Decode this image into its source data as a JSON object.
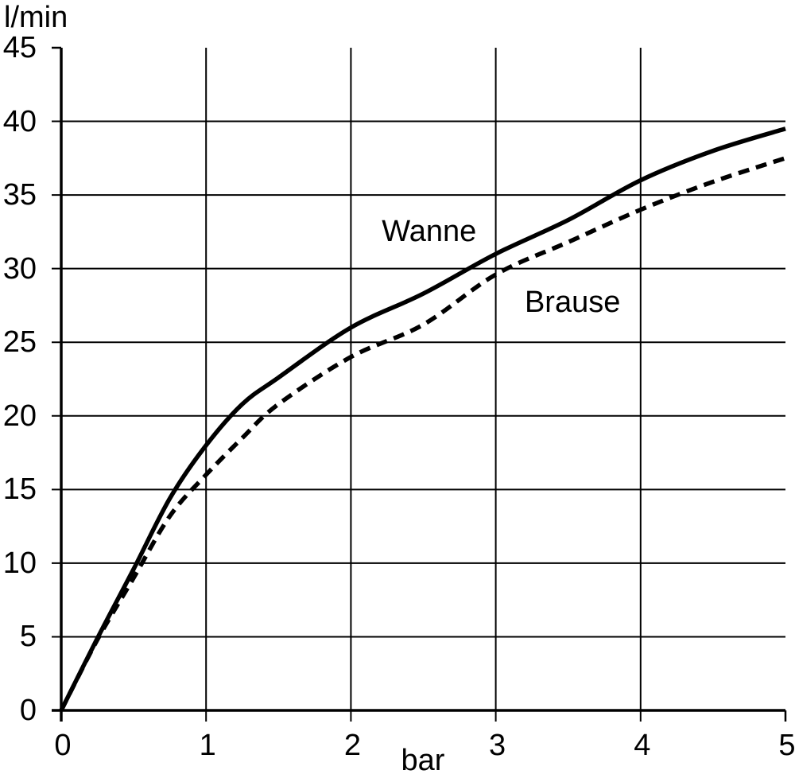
{
  "chart_data": {
    "type": "line",
    "title": "",
    "xlabel": "bar",
    "ylabel": "l/min",
    "xlim": [
      0,
      5
    ],
    "ylim": [
      0,
      45
    ],
    "grid": "on",
    "legend_position": "inline-annotations",
    "background_color": "#ffffff",
    "line_color": "#000000",
    "x_ticks": [
      {
        "value": 0,
        "label": "0",
        "grid": false
      },
      {
        "value": 1,
        "label": "1",
        "grid": true
      },
      {
        "value": 2,
        "label": "2",
        "grid": true
      },
      {
        "value": 3,
        "label": "3",
        "grid": true
      },
      {
        "value": 4,
        "label": "4",
        "grid": true
      },
      {
        "value": 5,
        "label": "5",
        "grid": false
      }
    ],
    "y_ticks": [
      {
        "value": 0,
        "label": "0",
        "grid": false
      },
      {
        "value": 5,
        "label": "5",
        "grid": true
      },
      {
        "value": 10,
        "label": "10",
        "grid": true
      },
      {
        "value": 15,
        "label": "15",
        "grid": true
      },
      {
        "value": 20,
        "label": "20",
        "grid": true
      },
      {
        "value": 25,
        "label": "25",
        "grid": true
      },
      {
        "value": 30,
        "label": "30",
        "grid": true
      },
      {
        "value": 35,
        "label": "35",
        "grid": true
      },
      {
        "value": 40,
        "label": "40",
        "grid": true
      },
      {
        "value": 45,
        "label": "45",
        "grid": false
      }
    ],
    "series": [
      {
        "name": "Wanne",
        "style": "solid",
        "label_at": [
          2.54,
          32.5
        ],
        "points": [
          [
            0,
            0
          ],
          [
            0.25,
            4.9
          ],
          [
            0.5,
            9.6
          ],
          [
            0.75,
            14.4
          ],
          [
            1,
            18
          ],
          [
            1.25,
            20.8
          ],
          [
            1.5,
            22.6
          ],
          [
            2,
            26
          ],
          [
            2.5,
            28.3
          ],
          [
            3,
            31
          ],
          [
            3.5,
            33.3
          ],
          [
            4,
            36
          ],
          [
            4.5,
            38
          ],
          [
            5,
            39.5
          ]
        ]
      },
      {
        "name": "Brause",
        "style": "dashed",
        "label_at": [
          3.53,
          27.7
        ],
        "points": [
          [
            0,
            0
          ],
          [
            0.25,
            4.8
          ],
          [
            0.5,
            9.0
          ],
          [
            0.75,
            13.2
          ],
          [
            1,
            16
          ],
          [
            1.25,
            18.5
          ],
          [
            1.5,
            20.8
          ],
          [
            2,
            24
          ],
          [
            2.5,
            26.2
          ],
          [
            3,
            29.6
          ],
          [
            3.5,
            31.8
          ],
          [
            4,
            34
          ],
          [
            4.5,
            35.9
          ],
          [
            5,
            37.5
          ]
        ]
      }
    ]
  }
}
